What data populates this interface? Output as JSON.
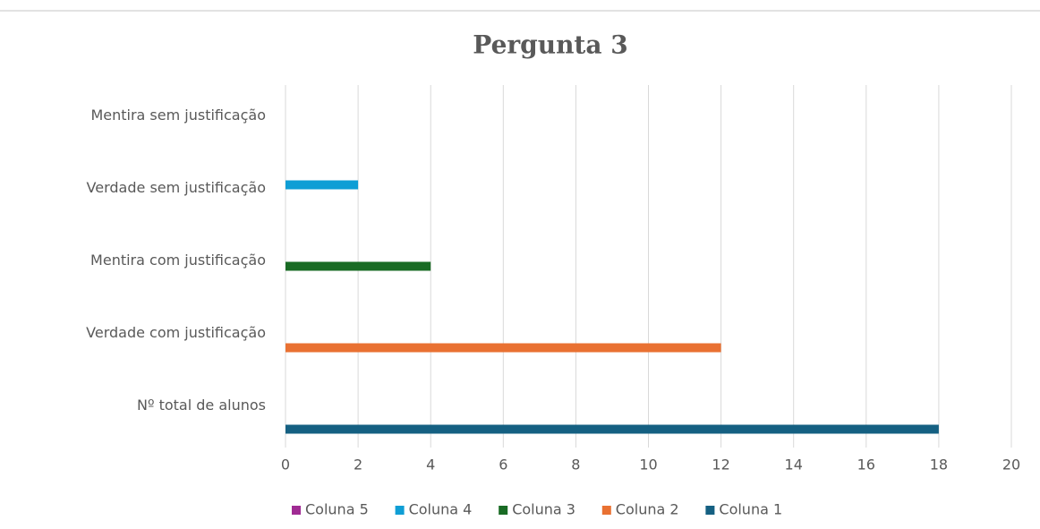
{
  "chart_data": {
    "type": "barh",
    "title": "Pergunta 3",
    "categories": [
      "Nº total de alunos",
      "Verdade com justificação",
      "Mentira com justificação",
      "Verdade sem justificação",
      "Mentira sem justificação"
    ],
    "series": [
      {
        "name": "Coluna 1",
        "color": "#156082",
        "values": [
          18,
          null,
          null,
          null,
          null
        ]
      },
      {
        "name": "Coluna 2",
        "color": "#e97132",
        "values": [
          null,
          12,
          null,
          null,
          null
        ]
      },
      {
        "name": "Coluna 3",
        "color": "#196b24",
        "values": [
          null,
          null,
          4,
          null,
          null
        ]
      },
      {
        "name": "Coluna 4",
        "color": "#0f9ed5",
        "values": [
          null,
          null,
          null,
          2,
          null
        ]
      },
      {
        "name": "Coluna 5",
        "color": "#a02b93",
        "values": [
          null,
          null,
          null,
          null,
          0
        ]
      }
    ],
    "xlim": [
      0,
      20
    ],
    "xticks": [
      0,
      2,
      4,
      6,
      8,
      10,
      12,
      14,
      16,
      18,
      20
    ],
    "grid": true,
    "legend": "bottom"
  }
}
